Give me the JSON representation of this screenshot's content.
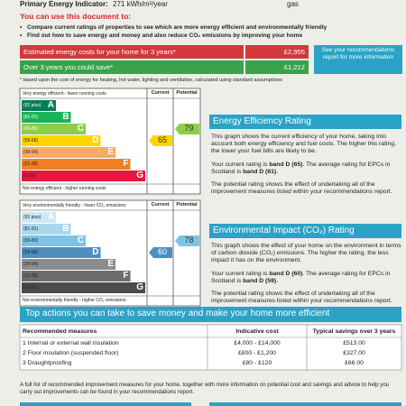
{
  "header": {
    "indicator_label": "Primary Energy Indicator:",
    "indicator_value": "271 kWh/m²/year",
    "fuel": "gas"
  },
  "intro": {
    "title": "You can use this document to:",
    "bullets": [
      "Compare current ratings of properties to see which are more energy efficient and environmentally friendly",
      "Find out how to save energy and money and also reduce CO₂ emissions by improving your home"
    ]
  },
  "costs": {
    "rows": [
      {
        "label": "Estimated energy costs for your home for 3 years*",
        "value": "£2,955"
      },
      {
        "label": "Over 3 years you could save*",
        "value": "£1,212"
      }
    ],
    "note": "See your recommendations report for more information",
    "footnote": "* based upon the cost of energy for heating, hot water, lighting and ventilation, calculated using standard assumptions"
  },
  "efficiency": {
    "top_label": "Very energy efficient - lower running costs",
    "bottom_label": "Not energy efficient - higher running costs",
    "current_header": "Current",
    "potential_header": "Potential",
    "bands": [
      {
        "range": "(92 plus)",
        "letter": "A"
      },
      {
        "range": "(81-91)",
        "letter": "B"
      },
      {
        "range": "(69-80)",
        "letter": "C"
      },
      {
        "range": "(55-68)",
        "letter": "D"
      },
      {
        "range": "(39-54)",
        "letter": "E"
      },
      {
        "range": "(21-38)",
        "letter": "F"
      },
      {
        "range": "(1-20)",
        "letter": "G"
      }
    ],
    "current": 65,
    "potential": 79,
    "heading": "Energy Efficiency Rating",
    "paragraphs": [
      [
        "This graph shows the current efficiency of your home, taking into account both energy efficiency and fuel costs. The higher this rating, the lower your fuel bills are likely to be."
      ],
      [
        "Your current rating is ",
        "band D (65)",
        ". The average rating for EPCs in Scotland is ",
        "band D (61)",
        "."
      ],
      [
        "The potential rating shows the effect of undertaking all of the improvement measures listed within your recommendations report."
      ]
    ]
  },
  "environment": {
    "top_label": "Very environmentally friendly - lower CO₂ emissions",
    "bottom_label": "Not environmentally friendly - higher CO₂ emissions",
    "current_header": "Current",
    "potential_header": "Potential",
    "bands": [
      {
        "range": "(92 plus)",
        "letter": "A"
      },
      {
        "range": "(81-91)",
        "letter": "B"
      },
      {
        "range": "(69-80)",
        "letter": "C"
      },
      {
        "range": "(55-68)",
        "letter": "D"
      },
      {
        "range": "(39-54)",
        "letter": "E"
      },
      {
        "range": "(21-38)",
        "letter": "F"
      },
      {
        "range": "(1-20)",
        "letter": "G"
      }
    ],
    "current": 60,
    "potential": 78,
    "heading": "Environmental Impact (CO₂) Rating",
    "paragraphs": [
      [
        "This graph shows the effect of your home on the environment in terms of carbon dioxide (CO₂) emissions. The higher the rating, the less impact it has on the environment."
      ],
      [
        "Your current rating is ",
        "band D (60)",
        ". The average rating for EPCs in Scotland is ",
        "band D (59)",
        "."
      ],
      [
        "The potential rating shows the effect of undertaking all of the improvement measures listed within your recommendations report."
      ]
    ]
  },
  "actions": {
    "title": "Top actions you can take to save money and make your home more efficient",
    "table": {
      "header": [
        "Recommended measures",
        "Indicative cost",
        "Typical savings over 3 years"
      ],
      "rows": [
        [
          "1 Internal or external wall insulation",
          "£4,000 - £14,000",
          "£513.00"
        ],
        [
          "2 Floor insulation (suspended floor)",
          "£800 - £1,200",
          "£327.00"
        ],
        [
          "3 Draughtproofing",
          "£80 - £120",
          "£66.00"
        ]
      ]
    },
    "footer": "A full list of recommended improvement measures for your home, together with more information on potential cost and savings and advice to help you carry out improvements can be found in your recommendations report."
  }
}
